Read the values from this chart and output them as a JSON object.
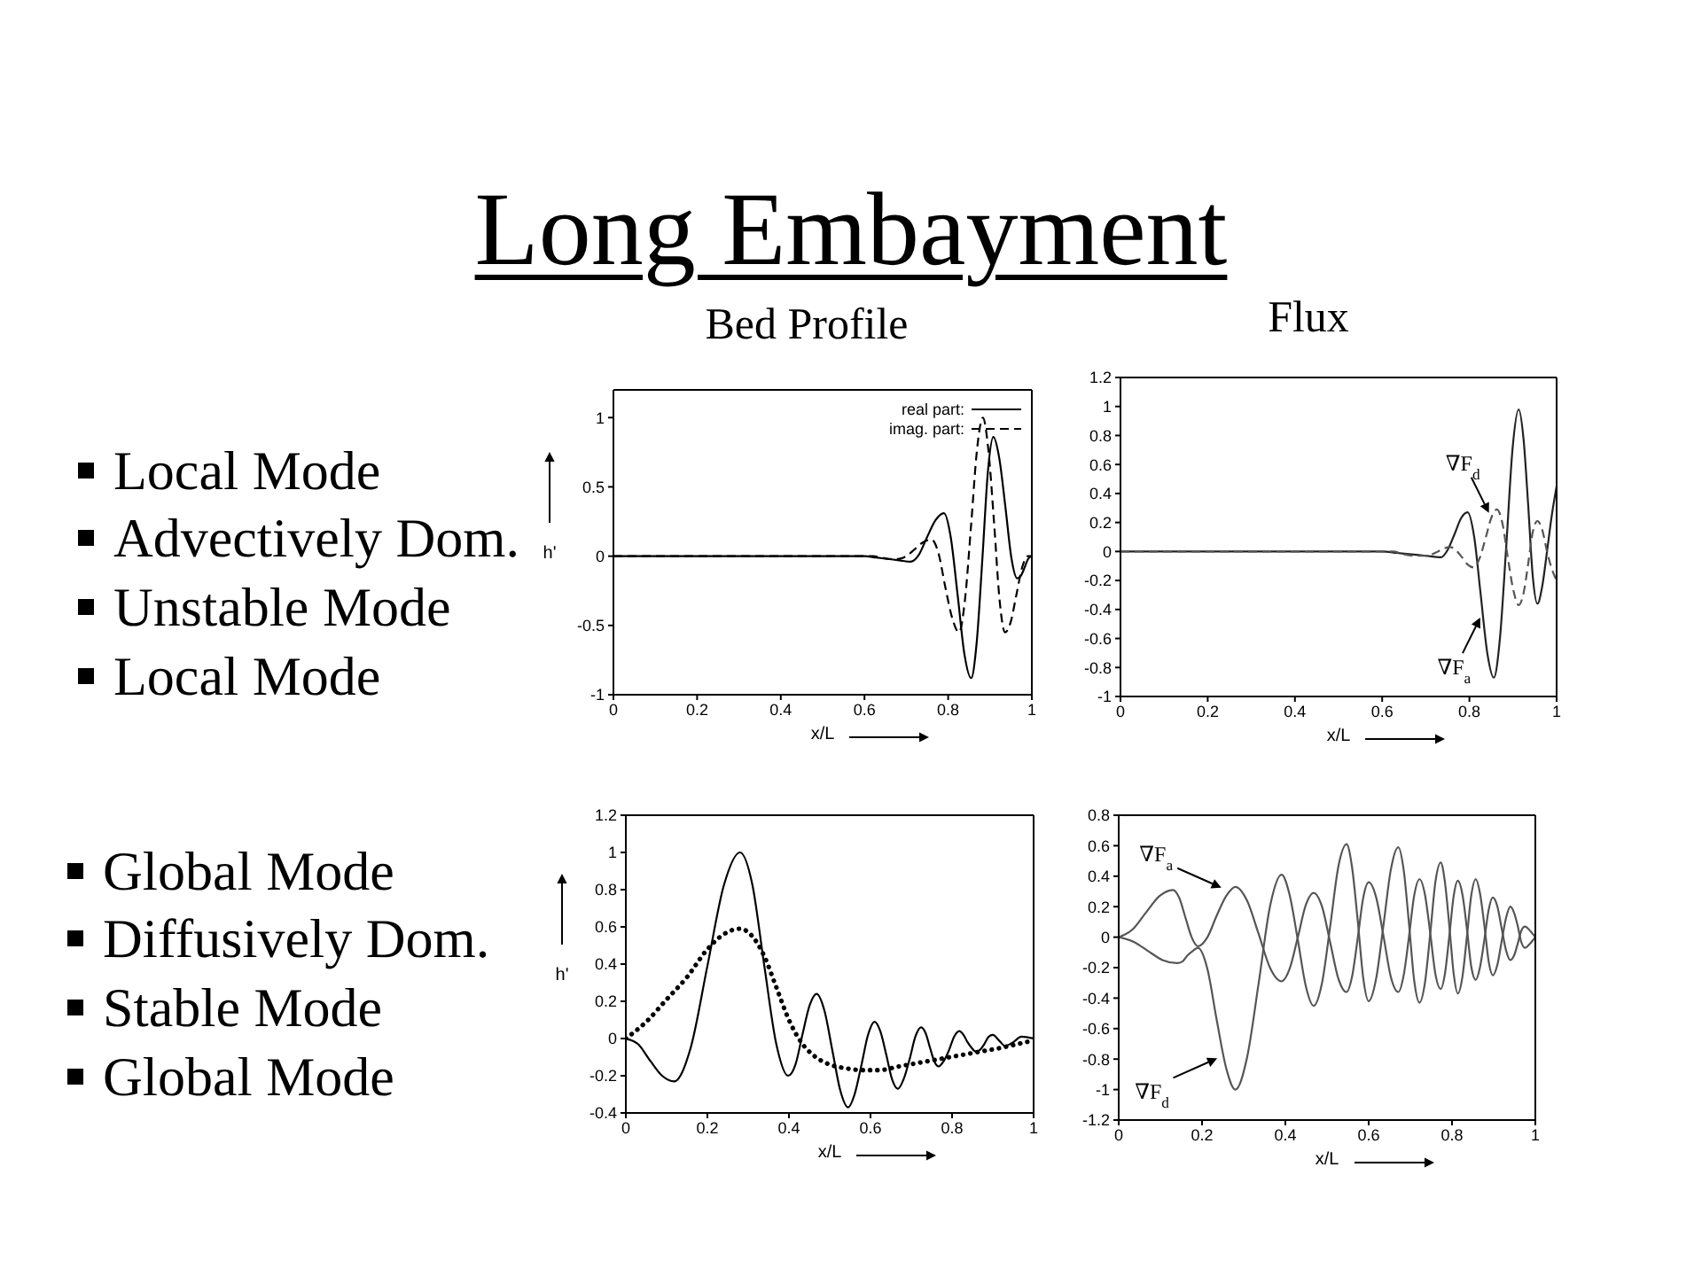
{
  "chart_data": [
    {
      "type": "other",
      "title": "Long Embayment"
    },
    {
      "type": "other",
      "annotations": [
        "Local Mode",
        "Advectively Dom.",
        "Unstable Mode",
        "Local Mode"
      ]
    },
    {
      "type": "line",
      "title": "Bed Profile",
      "xlabel": "x/L",
      "ylabel": "h'",
      "xlim": [
        0,
        1
      ],
      "xticks": [
        0,
        0.2,
        0.4,
        0.6,
        0.8,
        1
      ],
      "ylim": [
        -1,
        1.2
      ],
      "yticks": [
        -1,
        -0.5,
        0,
        0.5,
        1
      ],
      "legend": "top right",
      "marker": "none",
      "series": [
        {
          "name": "real part:",
          "color": "#000000",
          "line_style": "solid",
          "x": [
            0,
            0.6,
            0.628,
            0.655,
            0.683,
            0.71,
            0.73,
            0.75,
            0.77,
            0.79,
            0.806,
            0.823,
            0.839,
            0.855,
            0.868,
            0.882,
            0.895,
            0.908,
            0.922,
            0.937,
            0.951,
            0.965,
            0.974,
            0.983,
            0.991,
            1
          ],
          "values": [
            0,
            0,
            -0.01,
            -0.02,
            -0.03,
            -0.04,
            0.01,
            0.14,
            0.26,
            0.31,
            0.14,
            -0.29,
            -0.71,
            -0.88,
            -0.63,
            -0.01,
            0.61,
            0.86,
            0.71,
            0.35,
            -0.01,
            -0.16,
            -0.14,
            -0.08,
            -0.02,
            0
          ]
        },
        {
          "name": "imag. part:",
          "color": "#000000",
          "line_style": "dashed",
          "x": [
            0,
            0.6,
            0.62,
            0.64,
            0.66,
            0.68,
            0.7,
            0.72,
            0.74,
            0.76,
            0.777,
            0.793,
            0.81,
            0.826,
            0.84,
            0.855,
            0.869,
            0.883,
            0.896,
            0.91,
            0.923,
            0.936,
            0.95,
            0.963,
            0.977,
            0.99,
            1
          ],
          "values": [
            0,
            0,
            0,
            -0.01,
            -0.02,
            -0.02,
            0,
            0.05,
            0.1,
            0.12,
            0.02,
            -0.22,
            -0.45,
            -0.55,
            -0.32,
            0.23,
            0.77,
            1,
            0.77,
            0.23,
            -0.32,
            -0.55,
            -0.47,
            -0.28,
            -0.08,
            0,
            0
          ]
        }
      ]
    },
    {
      "type": "line",
      "title": "Flux",
      "xlabel": "x/L",
      "xlim": [
        0,
        1
      ],
      "xticks": [
        0,
        0.2,
        0.4,
        0.6,
        0.8,
        1
      ],
      "ylim": [
        -1,
        1.2
      ],
      "yticks": [
        -1,
        -0.8,
        -0.6,
        -0.4,
        -0.2,
        0,
        0.2,
        0.4,
        0.6,
        0.8,
        1,
        1.2
      ],
      "marker": "none",
      "annotations": [
        {
          "text": "∇F$_{d}$",
          "x": 0.85,
          "y": 0.23
        },
        {
          "text": "∇F$_{a}$",
          "x": 0.83,
          "y": -0.42
        }
      ],
      "series": [
        {
          "color": "#222222",
          "line_style": "solid",
          "x": [
            0,
            0.6,
            0.634,
            0.668,
            0.701,
            0.735,
            0.75,
            0.766,
            0.781,
            0.796,
            0.811,
            0.826,
            0.841,
            0.856,
            0.87,
            0.885,
            0.899,
            0.913,
            0.924,
            0.935,
            0.945,
            0.956,
            0.967,
            0.978,
            0.989,
            1
          ],
          "values": [
            0,
            0,
            -0.01,
            -0.02,
            -0.03,
            -0.04,
            0.01,
            0.12,
            0.23,
            0.27,
            0.1,
            -0.3,
            -0.7,
            -0.87,
            -0.6,
            0.06,
            0.71,
            0.98,
            0.78,
            0.31,
            -0.16,
            -0.36,
            -0.24,
            0,
            0.25,
            0.45
          ]
        },
        {
          "color": "#555555",
          "line_style": "dashed",
          "x": [
            0,
            0.6,
            0.625,
            0.65,
            0.675,
            0.7,
            0.714,
            0.728,
            0.741,
            0.755,
            0.769,
            0.783,
            0.796,
            0.81,
            0.823,
            0.837,
            0.85,
            0.863,
            0.876,
            0.888,
            0.901,
            0.913,
            0.924,
            0.935,
            0.945,
            0.956,
            0.967,
            0.978,
            0.989,
            1
          ],
          "values": [
            0,
            0,
            0,
            -0.02,
            -0.03,
            -0.03,
            -0.02,
            0,
            0.02,
            0.03,
            0.01,
            -0.04,
            -0.09,
            -0.11,
            -0.05,
            0.09,
            0.23,
            0.29,
            0.19,
            -0.04,
            -0.27,
            -0.37,
            -0.29,
            -0.08,
            0.13,
            0.21,
            0.15,
            0,
            -0.12,
            -0.2
          ]
        }
      ]
    },
    {
      "type": "other",
      "annotations": [
        "Global Mode",
        "Diffusively Dom.",
        "Stable Mode",
        "Global Mode"
      ]
    },
    {
      "type": "line",
      "xlabel": "x/L",
      "ylabel": "h'",
      "xlim": [
        0,
        1
      ],
      "xticks": [
        0,
        0.2,
        0.4,
        0.6,
        0.8,
        1
      ],
      "ylim": [
        -0.4,
        1.2
      ],
      "yticks": [
        -0.4,
        -0.2,
        0,
        0.2,
        0.4,
        0.6,
        0.8,
        1,
        1.2
      ],
      "marker": "none",
      "series": [
        {
          "color": "#000000",
          "line_style": "solid",
          "x": [
            0,
            0.03,
            0.06,
            0.089,
            0.119,
            0.159,
            0.2,
            0.24,
            0.28,
            0.31,
            0.339,
            0.369,
            0.398,
            0.416,
            0.433,
            0.451,
            0.468,
            0.487,
            0.507,
            0.526,
            0.545,
            0.561,
            0.578,
            0.594,
            0.61,
            0.624,
            0.639,
            0.653,
            0.667,
            0.681,
            0.696,
            0.71,
            0.724,
            0.735,
            0.746,
            0.756,
            0.767,
            0.78,
            0.793,
            0.805,
            0.818,
            0.828,
            0.838,
            0.848,
            0.858,
            0.869,
            0.879,
            0.89,
            0.9,
            0.915,
            0.93,
            0.95,
            0.97,
            1
          ],
          "values": [
            0,
            -0.03,
            -0.12,
            -0.2,
            -0.23,
            -0.05,
            0.39,
            0.82,
            1,
            0.83,
            0.4,
            -0.03,
            -0.2,
            -0.14,
            0.02,
            0.18,
            0.24,
            0.15,
            -0.07,
            -0.28,
            -0.37,
            -0.3,
            -0.14,
            0.02,
            0.09,
            0.04,
            -0.09,
            -0.22,
            -0.27,
            -0.22,
            -0.11,
            0.01,
            0.06,
            0.03,
            -0.05,
            -0.12,
            -0.15,
            -0.12,
            -0.06,
            0.01,
            0.04,
            0.02,
            -0.02,
            -0.05,
            -0.07,
            -0.06,
            -0.03,
            0.01,
            0.02,
            -0.01,
            -0.04,
            -0.02,
            0.01,
            0
          ]
        },
        {
          "color": "#000000",
          "line_style": "dotted",
          "x": [
            0,
            0.05,
            0.1,
            0.15,
            0.2,
            0.24,
            0.28,
            0.31,
            0.34,
            0.37,
            0.4,
            0.43,
            0.46,
            0.5,
            0.54,
            0.58,
            0.62,
            0.67,
            0.72,
            0.77,
            0.82,
            0.87,
            0.92,
            0.96,
            1
          ],
          "values": [
            0,
            0.09,
            0.21,
            0.33,
            0.48,
            0.56,
            0.59,
            0.55,
            0.44,
            0.27,
            0.1,
            -0.02,
            -0.09,
            -0.14,
            -0.16,
            -0.17,
            -0.17,
            -0.15,
            -0.13,
            -0.11,
            -0.09,
            -0.07,
            -0.05,
            -0.03,
            -0.01
          ]
        }
      ]
    },
    {
      "type": "line",
      "xlabel": "x/L",
      "xlim": [
        0,
        1
      ],
      "xticks": [
        0,
        0.2,
        0.4,
        0.6,
        0.8,
        1
      ],
      "ylim": [
        -1.2,
        0.8
      ],
      "yticks": [
        -1.2,
        -1,
        -0.8,
        -0.6,
        -0.4,
        -0.2,
        0,
        0.2,
        0.4,
        0.6,
        0.8
      ],
      "marker": "none",
      "annotations": [
        {
          "text": "∇F$_{a}$",
          "x": 0.26,
          "y": 0.29
        },
        {
          "text": "∇F$_{d}$",
          "x": 0.25,
          "y": -0.76
        }
      ],
      "series": [
        {
          "color": "#555555",
          "line_style": "solid",
          "x": [
            0,
            0.033,
            0.065,
            0.098,
            0.13,
            0.145,
            0.16,
            0.175,
            0.19,
            0.213,
            0.235,
            0.258,
            0.28,
            0.308,
            0.336,
            0.363,
            0.391,
            0.41,
            0.43,
            0.449,
            0.468,
            0.488,
            0.508,
            0.527,
            0.547,
            0.56,
            0.574,
            0.587,
            0.6,
            0.618,
            0.636,
            0.653,
            0.671,
            0.684,
            0.697,
            0.709,
            0.722,
            0.735,
            0.748,
            0.76,
            0.773,
            0.783,
            0.794,
            0.804,
            0.814,
            0.825,
            0.836,
            0.846,
            0.857,
            0.867,
            0.878,
            0.888,
            0.898,
            0.909,
            0.919,
            0.93,
            0.94,
            0.949,
            0.958,
            0.966,
            0.975,
            0.988,
            1
          ],
          "values": [
            0,
            0.05,
            0.16,
            0.27,
            0.31,
            0.26,
            0.13,
            0,
            -0.06,
            0,
            0.14,
            0.27,
            0.33,
            0.24,
            0.02,
            -0.2,
            -0.29,
            -0.21,
            0,
            0.21,
            0.29,
            0.2,
            -0.04,
            -0.27,
            -0.36,
            -0.26,
            0,
            0.26,
            0.36,
            0.26,
            0,
            -0.26,
            -0.36,
            -0.25,
            0.01,
            0.27,
            0.38,
            0.28,
            0.02,
            -0.24,
            -0.34,
            -0.24,
            0.02,
            0.27,
            0.37,
            0.28,
            0.05,
            -0.19,
            -0.28,
            -0.2,
            -0.01,
            0.18,
            0.26,
            0.2,
            0.06,
            -0.09,
            -0.15,
            -0.12,
            -0.04,
            0.04,
            0.07,
            0.04,
            0
          ]
        },
        {
          "color": "#555555",
          "line_style": "solid",
          "x": [
            0,
            0.035,
            0.07,
            0.105,
            0.14,
            0.153,
            0.165,
            0.178,
            0.19,
            0.213,
            0.235,
            0.258,
            0.28,
            0.308,
            0.336,
            0.363,
            0.391,
            0.41,
            0.43,
            0.449,
            0.468,
            0.488,
            0.508,
            0.527,
            0.547,
            0.56,
            0.574,
            0.587,
            0.6,
            0.618,
            0.636,
            0.653,
            0.671,
            0.684,
            0.697,
            0.709,
            0.722,
            0.735,
            0.748,
            0.76,
            0.773,
            0.783,
            0.794,
            0.804,
            0.814,
            0.825,
            0.836,
            0.846,
            0.857,
            0.867,
            0.878,
            0.888,
            0.898,
            0.909,
            0.919,
            0.93,
            0.94,
            0.949,
            0.958,
            0.966,
            0.975,
            0.988,
            1
          ],
          "values": [
            0,
            -0.03,
            -0.09,
            -0.15,
            -0.17,
            -0.16,
            -0.12,
            -0.09,
            -0.07,
            -0.21,
            -0.54,
            -0.86,
            -1,
            -0.79,
            -0.3,
            0.2,
            0.41,
            0.28,
            -0.02,
            -0.32,
            -0.45,
            -0.3,
            0.08,
            0.46,
            0.61,
            0.46,
            0.1,
            -0.27,
            -0.42,
            -0.27,
            0.09,
            0.44,
            0.59,
            0.44,
            0.08,
            -0.28,
            -0.43,
            -0.3,
            0.03,
            0.36,
            0.49,
            0.36,
            0.06,
            -0.24,
            -0.37,
            -0.26,
            0.01,
            0.27,
            0.38,
            0.29,
            0.07,
            -0.16,
            -0.25,
            -0.18,
            -0.03,
            0.13,
            0.2,
            0.16,
            0.07,
            -0.03,
            -0.07,
            -0.04,
            0
          ]
        }
      ]
    }
  ]
}
